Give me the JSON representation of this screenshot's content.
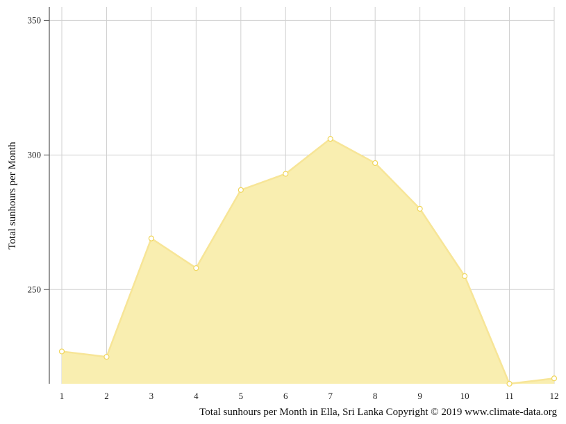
{
  "chart_data": {
    "type": "area",
    "x": [
      1,
      2,
      3,
      4,
      5,
      6,
      7,
      8,
      9,
      10,
      11,
      12
    ],
    "values": [
      227,
      225,
      269,
      258,
      287,
      293,
      306,
      297,
      280,
      255,
      215,
      217
    ],
    "ylabel": "Total sunhours per Month",
    "xlabel": "Total sunhours per Month in Ella, Sri Lanka Copyright © 2019 www.climate-data.org",
    "yticks": [
      250,
      300,
      350
    ],
    "xticks": [
      "1",
      "2",
      "3",
      "4",
      "5",
      "6",
      "7",
      "8",
      "9",
      "10",
      "11",
      "12"
    ],
    "ylim": [
      215,
      355
    ],
    "grid": true,
    "colors": {
      "fill": "#f9eeb0",
      "line": "#f7e597",
      "point_fill": "#ffffff",
      "point_stroke": "#f0d65c",
      "grid": "#d0d0d0",
      "axis": "#555555"
    }
  }
}
